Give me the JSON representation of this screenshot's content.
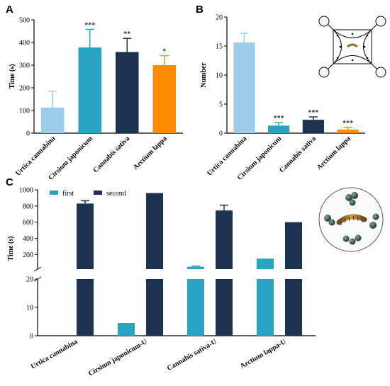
{
  "chart_data": [
    {
      "panel": "A",
      "type": "bar",
      "ylabel": "Time (s)",
      "ylim": [
        0,
        500
      ],
      "yticks": [
        0,
        100,
        200,
        300,
        400,
        500
      ],
      "categories": [
        "Urtica cannabina",
        "Cirsium japonicum",
        "Cannabis sativa",
        "Arctium lappa"
      ],
      "values": [
        113,
        378,
        358,
        300
      ],
      "errors": [
        72,
        80,
        60,
        42
      ],
      "significance": [
        "",
        "***",
        "**",
        "*"
      ],
      "colors": [
        "#9ccde8",
        "#29a3c4",
        "#1b3350",
        "#ff8c00"
      ]
    },
    {
      "panel": "B",
      "type": "bar",
      "ylabel": "Number",
      "ylim": [
        0,
        20
      ],
      "yticks": [
        0,
        5,
        10,
        15,
        20
      ],
      "categories": [
        "Urtica cannabina",
        "Cirsium japonicum",
        "Cannabis sativa",
        "Arctium lappa"
      ],
      "values": [
        15.6,
        1.3,
        2.3,
        0.6
      ],
      "errors": [
        1.6,
        0.5,
        0.5,
        0.4
      ],
      "significance": [
        "",
        "***",
        "***",
        "***"
      ],
      "colors": [
        "#9ccde8",
        "#29a3c4",
        "#1b3350",
        "#ff8c00"
      ]
    },
    {
      "panel": "C",
      "type": "bar",
      "ylabel": "Time (s)",
      "broken_axis": {
        "lower": [
          0,
          20
        ],
        "upper": [
          20,
          1000
        ]
      },
      "yticks_lower": [
        0,
        10,
        20
      ],
      "yticks_upper": [
        200,
        400,
        600,
        800,
        1000
      ],
      "categories": [
        "Urtica cannabina",
        "Cirsium japonicum-U",
        "Cannabis sativa-U",
        "Arctium lappa-U"
      ],
      "legend_position": "top-left",
      "series": [
        {
          "name": "first",
          "color": "#29a3c4",
          "values": [
            0,
            4.5,
            50,
            150
          ],
          "errors": [
            0,
            0,
            8,
            0
          ]
        },
        {
          "name": "second",
          "color": "#1b3350",
          "values": [
            830,
            960,
            745,
            600
          ],
          "errors": [
            35,
            0,
            65,
            0
          ]
        }
      ]
    }
  ]
}
